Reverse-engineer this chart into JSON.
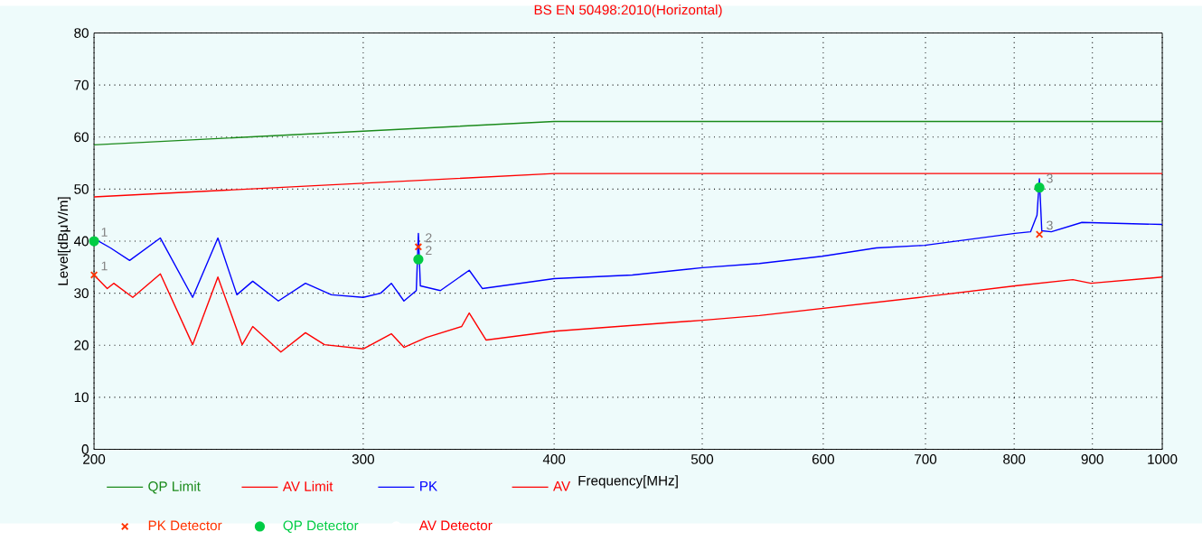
{
  "chart_data": {
    "type": "line",
    "title": "BS EN 50498:2010(Horizontal)",
    "xlabel": "Frequency[MHz]",
    "ylabel": "Level[dBμV/m]",
    "log": "x",
    "grid": true,
    "legend": "bottom",
    "xlim": [
      200,
      1000
    ],
    "xticks": [
      200,
      300,
      400,
      500,
      600,
      700,
      800,
      900,
      1000
    ],
    "ylim": [
      0,
      80
    ],
    "yticks": [
      0,
      10,
      20,
      30,
      40,
      50,
      60,
      70,
      80
    ],
    "series": [
      {
        "name": "QP Limit",
        "color": "#1a8a1a",
        "x": [
          200,
          400,
          1000
        ],
        "values": [
          58.5,
          63,
          63
        ]
      },
      {
        "name": "AV Limit",
        "color": "#ff0000",
        "x": [
          200,
          400,
          1000
        ],
        "values": [
          48.5,
          53,
          53
        ]
      },
      {
        "name": "PK",
        "color": "#0000ff",
        "x": [
          200,
          205,
          211,
          221,
          232,
          241,
          248,
          254,
          264,
          275,
          286,
          300,
          308,
          313,
          319,
          325,
          326,
          327,
          337,
          352,
          359,
          400,
          450,
          500,
          545,
          599,
          650,
          699,
          801,
          820,
          828,
          831,
          834,
          846,
          886,
          1000
        ],
        "values": [
          40.5,
          38.7,
          36.3,
          40.6,
          29.2,
          40.6,
          29.7,
          32.3,
          28.5,
          31.9,
          29.7,
          29.2,
          30.0,
          31.9,
          28.5,
          30.5,
          41.5,
          31.4,
          30.5,
          34.4,
          30.9,
          32.8,
          33.5,
          34.9,
          35.7,
          37.1,
          38.7,
          39.2,
          41.5,
          41.8,
          45,
          52,
          42,
          41.8,
          43.6,
          43.2
        ]
      },
      {
        "name": "AV",
        "color": "#ff0000",
        "x": [
          200,
          204,
          206,
          212,
          221,
          232,
          241,
          250,
          254,
          265,
          275,
          283,
          300,
          313,
          319,
          330,
          348,
          352,
          361,
          400,
          500,
          545,
          699,
          801,
          874,
          898,
          1000
        ],
        "values": [
          33.5,
          30.9,
          31.9,
          29.2,
          33.7,
          20.1,
          33.1,
          20.1,
          23.6,
          18.7,
          22.4,
          20.1,
          19.3,
          22.2,
          19.6,
          21.5,
          23.6,
          26.2,
          21.0,
          22.7,
          24.8,
          25.7,
          29.3,
          31.4,
          32.6,
          31.9,
          33.1
        ]
      },
      {
        "name": "PK Detector",
        "type": "scatter",
        "marker": "cross",
        "color": "#ff3300",
        "x": [
          200,
          326,
          831
        ],
        "values": [
          33.5,
          38.9,
          41.3
        ]
      },
      {
        "name": "QP Detector",
        "type": "scatter",
        "marker": "circle",
        "color": "#00cc44",
        "x": [
          200,
          326,
          831
        ],
        "values": [
          40.0,
          36.5,
          50.3
        ]
      },
      {
        "name": "AV Detector",
        "type": "scatter",
        "marker": "circle",
        "color": "#ffffff"
      }
    ],
    "annotations": [
      {
        "text": "1",
        "x": 200,
        "y": 33.5
      },
      {
        "text": "1",
        "x": 200,
        "y": 40.0
      },
      {
        "text": "2",
        "x": 326,
        "y": 38.9
      },
      {
        "text": "2",
        "x": 326,
        "y": 36.5
      },
      {
        "text": "3",
        "x": 831,
        "y": 50.3
      },
      {
        "text": "3",
        "x": 831,
        "y": 41.3
      }
    ]
  }
}
